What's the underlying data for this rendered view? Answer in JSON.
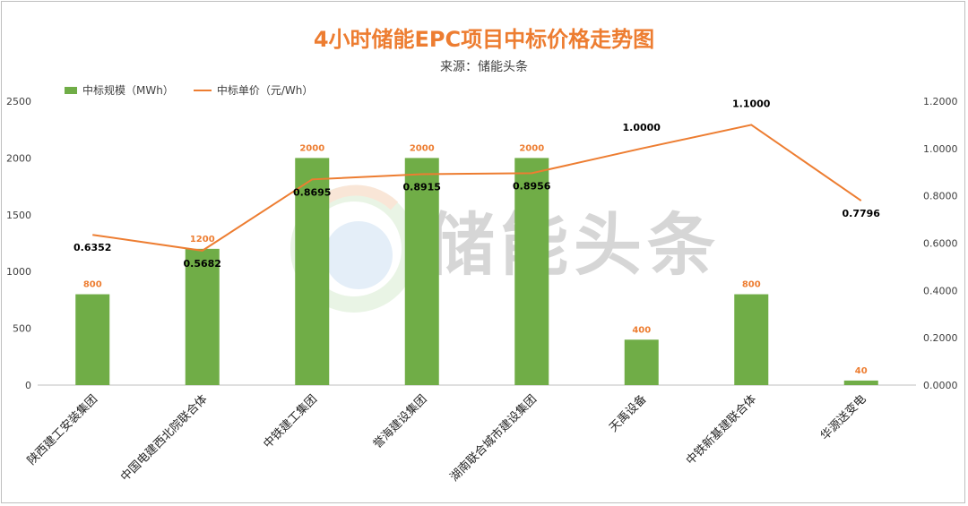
{
  "chart_data": {
    "type": "bar",
    "title": "4小时储能EPC项目中标价格走势图",
    "subtitle": "来源：储能头条",
    "watermark": "储能头条",
    "categories": [
      "陕西建工安装集团",
      "中国电建西北院联合体",
      "中铁建工集团",
      "誉海建设集团",
      "湖南联合城市建设集团",
      "天禹设备",
      "中铁新基建联合体",
      "华源送变电"
    ],
    "series": [
      {
        "name": "中标规模（MWh）",
        "type": "bar",
        "axis": "left",
        "color": "#70ad47",
        "values": [
          800,
          1200,
          2000,
          2000,
          2000,
          400,
          800,
          40
        ],
        "labels": [
          "800",
          "1200",
          "2000",
          "2000",
          "2000",
          "400",
          "800",
          "40"
        ]
      },
      {
        "name": "中标单价（元/Wh）",
        "type": "line",
        "axis": "right",
        "color": "#ed7d31",
        "values": [
          0.6352,
          0.5682,
          0.8695,
          0.8915,
          0.8956,
          1.0,
          1.1,
          0.7796
        ],
        "labels": [
          "0.6352",
          "0.5682",
          "0.8695",
          "0.8915",
          "0.8956",
          "1.0000",
          "1.1000",
          "0.7796"
        ]
      }
    ],
    "y_left": {
      "min": 0,
      "max": 2500,
      "ticks": [
        "0",
        "500",
        "1000",
        "1500",
        "2000",
        "2500"
      ]
    },
    "y_right": {
      "min": 0,
      "max": 1.2,
      "ticks": [
        "0.0000",
        "0.2000",
        "0.4000",
        "0.6000",
        "0.8000",
        "1.0000",
        "1.2000"
      ]
    },
    "grid": false,
    "legend": "top-left"
  }
}
